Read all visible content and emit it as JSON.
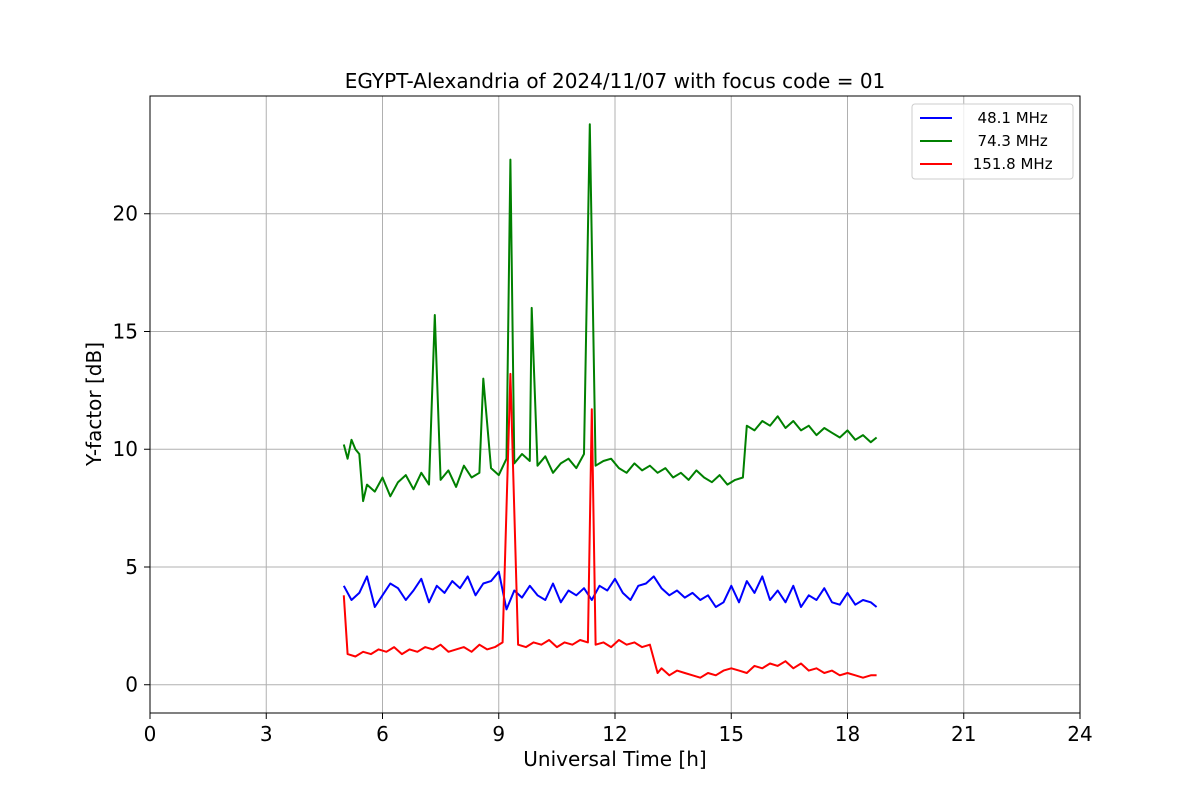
{
  "chart_data": {
    "type": "line",
    "title": "EGYPT-Alexandria of 2024/11/07 with focus code = 01",
    "xlabel": "Universal Time [h]",
    "ylabel": "Y-factor [dB]",
    "xlim": [
      0,
      24
    ],
    "ylim": [
      -1.2,
      25
    ],
    "xticks": [
      0,
      3,
      6,
      9,
      12,
      15,
      18,
      21,
      24
    ],
    "yticks": [
      0,
      5,
      10,
      15,
      20
    ],
    "grid": true,
    "legend_position": "top-right",
    "series": [
      {
        "name": "  48.1 MHz",
        "color": "#0000ff",
        "x": [
          5.0,
          5.2,
          5.4,
          5.6,
          5.8,
          6.0,
          6.2,
          6.4,
          6.6,
          6.8,
          7.0,
          7.2,
          7.4,
          7.6,
          7.8,
          8.0,
          8.2,
          8.4,
          8.6,
          8.8,
          9.0,
          9.2,
          9.4,
          9.6,
          9.8,
          10.0,
          10.2,
          10.4,
          10.6,
          10.8,
          11.0,
          11.2,
          11.4,
          11.6,
          11.8,
          12.0,
          12.2,
          12.4,
          12.6,
          12.8,
          13.0,
          13.2,
          13.4,
          13.6,
          13.8,
          14.0,
          14.2,
          14.4,
          14.6,
          14.8,
          15.0,
          15.2,
          15.4,
          15.6,
          15.8,
          16.0,
          16.2,
          16.4,
          16.6,
          16.8,
          17.0,
          17.2,
          17.4,
          17.6,
          17.8,
          18.0,
          18.2,
          18.4,
          18.6,
          18.75
        ],
        "y": [
          4.2,
          3.6,
          3.9,
          4.6,
          3.3,
          3.8,
          4.3,
          4.1,
          3.6,
          4.0,
          4.5,
          3.5,
          4.2,
          3.9,
          4.4,
          4.1,
          4.6,
          3.8,
          4.3,
          4.4,
          4.8,
          3.2,
          4.0,
          3.7,
          4.2,
          3.8,
          3.6,
          4.3,
          3.5,
          4.0,
          3.8,
          4.1,
          3.6,
          4.2,
          4.0,
          4.5,
          3.9,
          3.6,
          4.2,
          4.3,
          4.6,
          4.1,
          3.8,
          4.0,
          3.7,
          3.9,
          3.6,
          3.8,
          3.3,
          3.5,
          4.2,
          3.5,
          4.4,
          3.9,
          4.6,
          3.6,
          4.0,
          3.5,
          4.2,
          3.3,
          3.8,
          3.6,
          4.1,
          3.5,
          3.4,
          3.9,
          3.4,
          3.6,
          3.5,
          3.3
        ]
      },
      {
        "name": "  74.3 MHz",
        "color": "#008000",
        "x": [
          5.0,
          5.1,
          5.2,
          5.3,
          5.4,
          5.5,
          5.6,
          5.8,
          6.0,
          6.2,
          6.4,
          6.6,
          6.8,
          7.0,
          7.2,
          7.35,
          7.5,
          7.7,
          7.9,
          8.1,
          8.3,
          8.5,
          8.6,
          8.8,
          9.0,
          9.2,
          9.3,
          9.4,
          9.6,
          9.8,
          9.85,
          10.0,
          10.2,
          10.4,
          10.6,
          10.8,
          11.0,
          11.2,
          11.35,
          11.5,
          11.7,
          11.9,
          12.1,
          12.3,
          12.5,
          12.7,
          12.9,
          13.1,
          13.3,
          13.5,
          13.7,
          13.9,
          14.1,
          14.3,
          14.5,
          14.7,
          14.9,
          15.1,
          15.3,
          15.4,
          15.6,
          15.8,
          16.0,
          16.2,
          16.4,
          16.6,
          16.8,
          17.0,
          17.2,
          17.4,
          17.6,
          17.8,
          18.0,
          18.2,
          18.4,
          18.6,
          18.75
        ],
        "y": [
          10.2,
          9.6,
          10.4,
          10.0,
          9.8,
          7.8,
          8.5,
          8.2,
          8.8,
          8.0,
          8.6,
          8.9,
          8.3,
          9.0,
          8.5,
          15.7,
          8.7,
          9.1,
          8.4,
          9.3,
          8.8,
          9.0,
          13.0,
          9.2,
          8.9,
          9.6,
          22.3,
          9.4,
          9.8,
          9.5,
          16.0,
          9.3,
          9.7,
          9.0,
          9.4,
          9.6,
          9.2,
          9.8,
          23.8,
          9.3,
          9.5,
          9.6,
          9.2,
          9.0,
          9.4,
          9.1,
          9.3,
          9.0,
          9.2,
          8.8,
          9.0,
          8.7,
          9.1,
          8.8,
          8.6,
          8.9,
          8.5,
          8.7,
          8.8,
          11.0,
          10.8,
          11.2,
          11.0,
          11.4,
          10.9,
          11.2,
          10.8,
          11.0,
          10.6,
          10.9,
          10.7,
          10.5,
          10.8,
          10.4,
          10.6,
          10.3,
          10.5
        ]
      },
      {
        "name": " 151.8 MHz",
        "color": "#ff0000",
        "x": [
          5.0,
          5.1,
          5.3,
          5.5,
          5.7,
          5.9,
          6.1,
          6.3,
          6.5,
          6.7,
          6.9,
          7.1,
          7.3,
          7.5,
          7.7,
          7.9,
          8.1,
          8.3,
          8.5,
          8.7,
          8.9,
          9.1,
          9.3,
          9.5,
          9.7,
          9.9,
          10.1,
          10.3,
          10.5,
          10.7,
          10.9,
          11.1,
          11.3,
          11.4,
          11.5,
          11.7,
          11.9,
          12.1,
          12.3,
          12.5,
          12.7,
          12.9,
          13.1,
          13.2,
          13.4,
          13.6,
          13.8,
          14.0,
          14.2,
          14.4,
          14.6,
          14.8,
          15.0,
          15.2,
          15.4,
          15.6,
          15.8,
          16.0,
          16.2,
          16.4,
          16.6,
          16.8,
          17.0,
          17.2,
          17.4,
          17.6,
          17.8,
          18.0,
          18.2,
          18.4,
          18.6,
          18.75
        ],
        "y": [
          3.8,
          1.3,
          1.2,
          1.4,
          1.3,
          1.5,
          1.4,
          1.6,
          1.3,
          1.5,
          1.4,
          1.6,
          1.5,
          1.7,
          1.4,
          1.5,
          1.6,
          1.4,
          1.7,
          1.5,
          1.6,
          1.8,
          13.2,
          1.7,
          1.6,
          1.8,
          1.7,
          1.9,
          1.6,
          1.8,
          1.7,
          1.9,
          1.8,
          11.7,
          1.7,
          1.8,
          1.6,
          1.9,
          1.7,
          1.8,
          1.6,
          1.7,
          0.5,
          0.7,
          0.4,
          0.6,
          0.5,
          0.4,
          0.3,
          0.5,
          0.4,
          0.6,
          0.7,
          0.6,
          0.5,
          0.8,
          0.7,
          0.9,
          0.8,
          1.0,
          0.7,
          0.9,
          0.6,
          0.7,
          0.5,
          0.6,
          0.4,
          0.5,
          0.4,
          0.3,
          0.4,
          0.4
        ]
      }
    ]
  }
}
